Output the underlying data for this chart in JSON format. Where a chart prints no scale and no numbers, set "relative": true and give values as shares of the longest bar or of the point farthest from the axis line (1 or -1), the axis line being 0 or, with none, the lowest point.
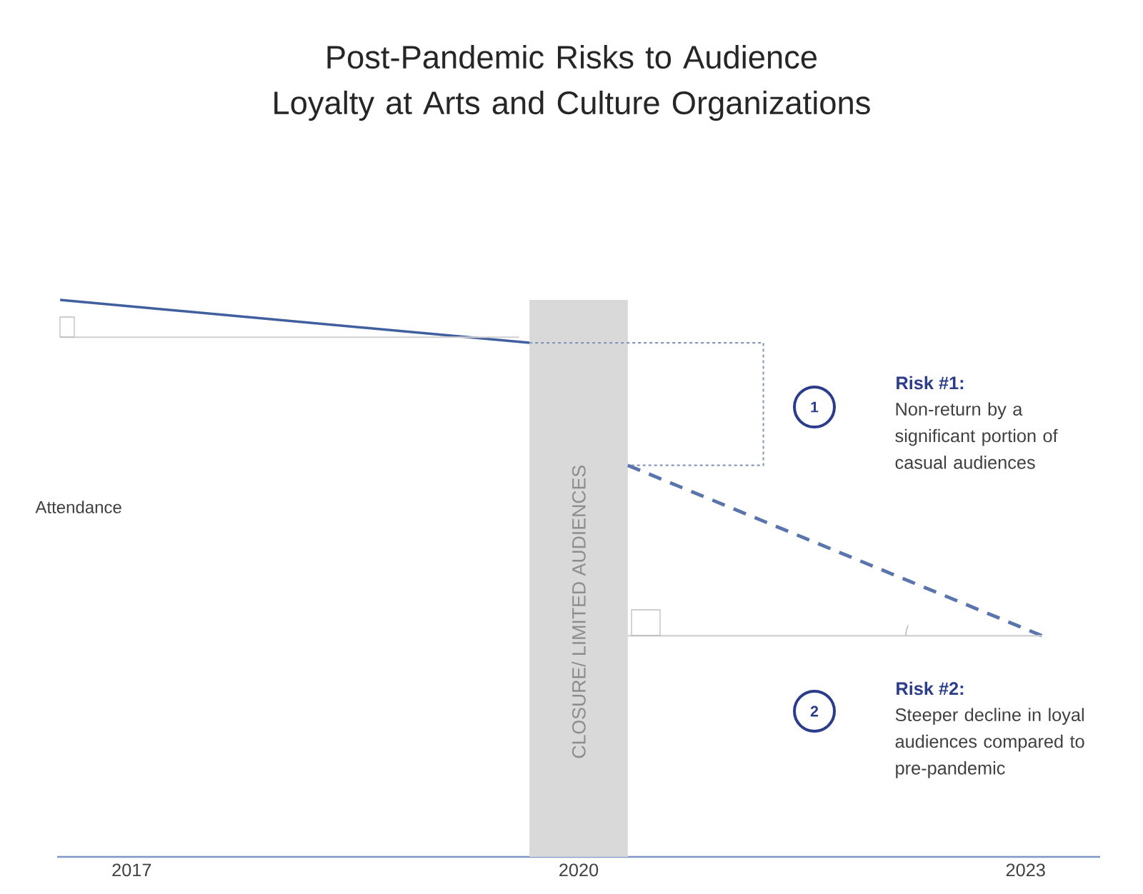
{
  "chart_data": {
    "type": "line",
    "title": "Post-Pandemic Risks to Audience Loyalty at Arts and Culture Organizations",
    "ylabel": "Attendance",
    "relative": true,
    "xlim": [
      2016.5,
      2023.5
    ],
    "xticks": [
      2017,
      2020,
      2023
    ],
    "series": [
      {
        "color": "#3f5f9f",
        "line_style": "solid",
        "x": [
          2016.52,
          2019.67
        ],
        "values": [
          1,
          0.923
        ]
      },
      {
        "color": "#cfcfcf",
        "line_style": "solid",
        "x": [
          2016.52,
          2019.6
        ],
        "values": [
          0.933,
          0.933
        ]
      },
      {
        "color": "#8a96b8",
        "line_style": "dotted",
        "x": [
          2019.67,
          2021.24,
          2021.24,
          2020.33
        ],
        "values": [
          0.923,
          0.923,
          0.703,
          0.703
        ]
      },
      {
        "color": "#5a74ad",
        "line_style": "dashed",
        "x": [
          2020.33,
          2023.11
        ],
        "values": [
          0.703,
          0.397
        ]
      },
      {
        "color": "#cfcfcf",
        "line_style": "solid",
        "x": [
          2020.33,
          2023.11
        ],
        "values": [
          0.397,
          0.397
        ]
      }
    ],
    "bands": [
      {
        "axis": "x",
        "from": 2019.67,
        "to": 2020.33,
        "label": "CLOSURE/ LIMITED AUDIENCES",
        "color": "#d9d9d9"
      }
    ],
    "annotations": [
      "1",
      "Risk #1:",
      "Non-return by a significant portion of casual audiences",
      "2",
      "Risk #2:",
      "Steeper decline in loyal audiences compared to pre-pandemic"
    ]
  }
}
